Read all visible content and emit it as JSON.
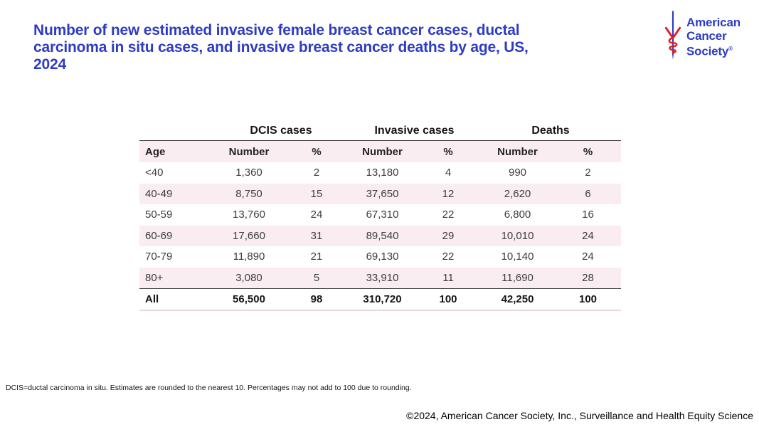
{
  "slide": {
    "title_lines": [
      "Number of new estimated invasive female breast cancer cases, ductal",
      "carcinoma in situ cases, and invasive breast cancer deaths by age, US,",
      "2024"
    ],
    "footnote": "DCIS=ductal carcinoma in situ. Estimates are rounded to the nearest 10. Percentages may not add to 100 due to rounding.",
    "footer": "©2024, American Cancer Society, Inc., Surveillance and Health Equity Science"
  },
  "logo": {
    "name_lines": [
      "American",
      "Cancer",
      "Society"
    ],
    "registered_mark": "®",
    "mark_icon": "caduceus-sword-icon"
  },
  "table": {
    "group_headers": [
      {
        "label": "DCIS cases"
      },
      {
        "label": "Invasive cases"
      },
      {
        "label": "Deaths"
      }
    ],
    "column_headers": [
      "Age",
      "Number",
      "%",
      "Number",
      "%",
      "Number",
      "%"
    ],
    "rows": [
      {
        "age": "<40",
        "cells": [
          "1,360",
          "2",
          "13,180",
          "4",
          "990",
          "2"
        ]
      },
      {
        "age": "40-49",
        "cells": [
          "8,750",
          "15",
          "37,650",
          "12",
          "2,620",
          "6"
        ]
      },
      {
        "age": "50-59",
        "cells": [
          "13,760",
          "24",
          "67,310",
          "22",
          "6,800",
          "16"
        ]
      },
      {
        "age": "60-69",
        "cells": [
          "17,660",
          "31",
          "89,540",
          "29",
          "10,010",
          "24"
        ]
      },
      {
        "age": "70-79",
        "cells": [
          "11,890",
          "21",
          "69,130",
          "22",
          "10,140",
          "24"
        ]
      },
      {
        "age": "80+",
        "cells": [
          "3,080",
          "5",
          "33,910",
          "11",
          "11,690",
          "28"
        ]
      }
    ],
    "total_row": {
      "age": "All",
      "cells": [
        "56,500",
        "98",
        "310,720",
        "100",
        "42,250",
        "100"
      ]
    }
  },
  "colors": {
    "title_blue": "#2e3cc2",
    "logo_blue": "#2e3cc2",
    "logo_red": "#e01f26",
    "row_pink": "#f9edf2",
    "dark_border": "#474042",
    "light_border": "#ecd7e0",
    "table_text": "#3d3d3d"
  },
  "chart_data": {
    "type": "table",
    "title": "Number of new estimated invasive female breast cancer cases, ductal carcinoma in situ cases, and invasive breast cancer deaths by age, US, 2024",
    "column_groups": [
      "DCIS cases",
      "Invasive cases",
      "Deaths"
    ],
    "columns": [
      "Age",
      "DCIS Number",
      "DCIS %",
      "Invasive Number",
      "Invasive %",
      "Deaths Number",
      "Deaths %"
    ],
    "rows": [
      [
        "<40",
        1360,
        2,
        13180,
        4,
        990,
        2
      ],
      [
        "40-49",
        8750,
        15,
        37650,
        12,
        2620,
        6
      ],
      [
        "50-59",
        13760,
        24,
        67310,
        22,
        6800,
        16
      ],
      [
        "60-69",
        17660,
        31,
        89540,
        29,
        10010,
        24
      ],
      [
        "70-79",
        11890,
        21,
        69130,
        22,
        10140,
        24
      ],
      [
        "80+",
        3080,
        5,
        33910,
        11,
        11690,
        28
      ],
      [
        "All",
        56500,
        98,
        310720,
        100,
        42250,
        100
      ]
    ],
    "footnote": "DCIS=ductal carcinoma in situ. Estimates are rounded to the nearest 10. Percentages may not add to 100 due to rounding."
  }
}
